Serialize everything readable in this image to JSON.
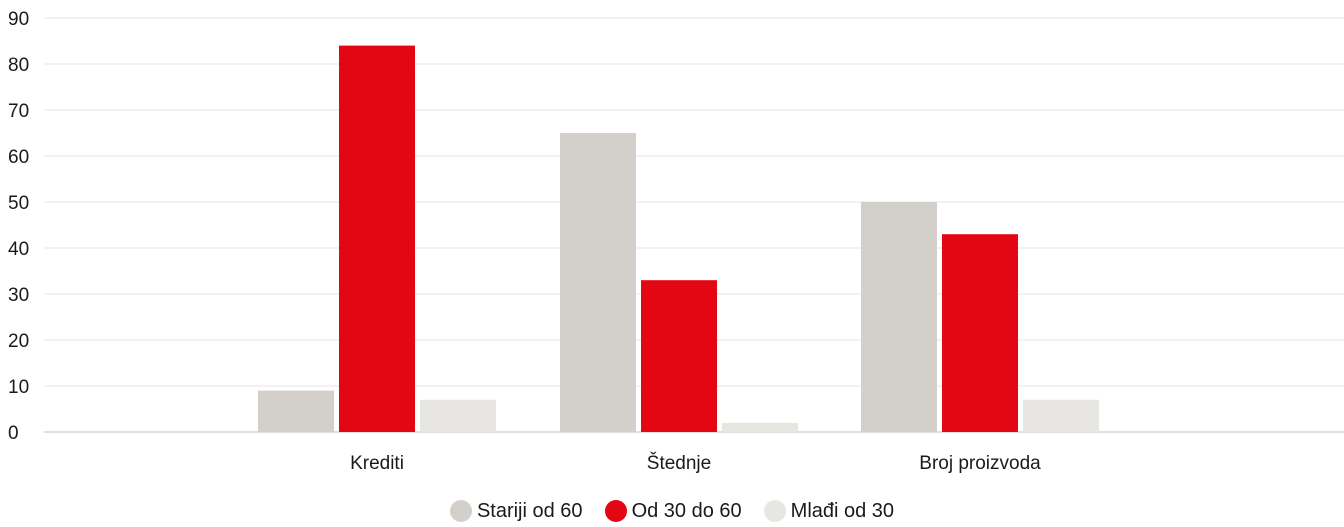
{
  "chart_data": {
    "type": "bar",
    "categories": [
      "Krediti",
      "Štednje",
      "Broj proizvoda"
    ],
    "series": [
      {
        "name": "Stariji od 60",
        "values": [
          9,
          65,
          50
        ],
        "color": "#d3cfcb"
      },
      {
        "name": "Od 30 do 60",
        "values": [
          84,
          33,
          43
        ],
        "color": "#e30613"
      },
      {
        "name": "Mlađi od 30",
        "values": [
          7,
          2,
          7
        ],
        "color": "#e8e6e3"
      }
    ],
    "title": "",
    "xlabel": "",
    "ylabel": "",
    "ylim": [
      0,
      90
    ],
    "yticks": [
      0,
      10,
      20,
      30,
      40,
      50,
      60,
      70,
      80,
      90
    ],
    "grid": true,
    "legend": "bottom-center"
  }
}
